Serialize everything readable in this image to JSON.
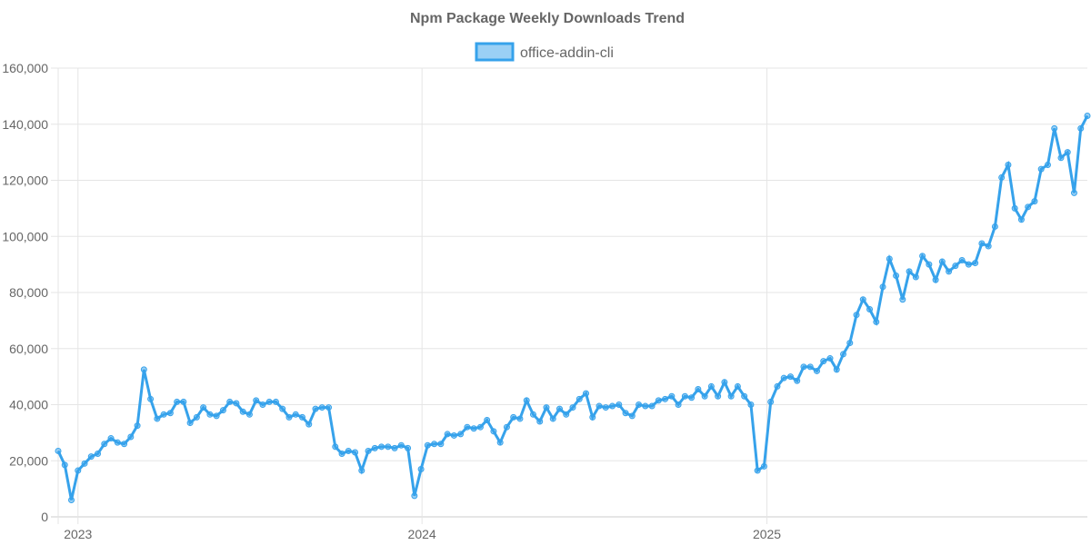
{
  "chart_data": {
    "type": "line",
    "title": "Npm Package Weekly Downloads Trend",
    "xlabel": "",
    "ylabel": "",
    "ylim": [
      0,
      160000
    ],
    "y_ticks": [
      "0",
      "20,000",
      "40,000",
      "60,000",
      "80,000",
      "100,000",
      "120,000",
      "140,000",
      "160,000"
    ],
    "x_ticks": [
      {
        "label": "2023",
        "date": "2023-01-01"
      },
      {
        "label": "2024",
        "date": "2024-01-01"
      },
      {
        "label": "2025",
        "date": "2025-01-01"
      }
    ],
    "grid": true,
    "legend_position": "top",
    "colors": {
      "line": "#36a2eb",
      "fill": "#9ad0f5"
    },
    "x": [
      "2022-12-11",
      "2022-12-18",
      "2022-12-25",
      "2023-01-01",
      "2023-01-08",
      "2023-01-15",
      "2023-01-22",
      "2023-01-29",
      "2023-02-05",
      "2023-02-12",
      "2023-02-19",
      "2023-02-26",
      "2023-03-05",
      "2023-03-12",
      "2023-03-19",
      "2023-03-26",
      "2023-04-02",
      "2023-04-09",
      "2023-04-16",
      "2023-04-23",
      "2023-04-30",
      "2023-05-07",
      "2023-05-14",
      "2023-05-21",
      "2023-05-28",
      "2023-06-04",
      "2023-06-11",
      "2023-06-18",
      "2023-06-25",
      "2023-07-02",
      "2023-07-09",
      "2023-07-16",
      "2023-07-23",
      "2023-07-30",
      "2023-08-06",
      "2023-08-13",
      "2023-08-20",
      "2023-08-27",
      "2023-09-03",
      "2023-09-10",
      "2023-09-17",
      "2023-09-24",
      "2023-10-01",
      "2023-10-08",
      "2023-10-15",
      "2023-10-22",
      "2023-10-29",
      "2023-11-05",
      "2023-11-12",
      "2023-11-19",
      "2023-11-26",
      "2023-12-03",
      "2023-12-10",
      "2023-12-17",
      "2023-12-24",
      "2023-12-31",
      "2024-01-07",
      "2024-01-14",
      "2024-01-21",
      "2024-01-28",
      "2024-02-04",
      "2024-02-11",
      "2024-02-18",
      "2024-02-25",
      "2024-03-03",
      "2024-03-10",
      "2024-03-17",
      "2024-03-24",
      "2024-03-31",
      "2024-04-07",
      "2024-04-14",
      "2024-04-21",
      "2024-04-28",
      "2024-05-05",
      "2024-05-12",
      "2024-05-19",
      "2024-05-26",
      "2024-06-02",
      "2024-06-09",
      "2024-06-16",
      "2024-06-23",
      "2024-06-30",
      "2024-07-07",
      "2024-07-14",
      "2024-07-21",
      "2024-07-28",
      "2024-08-04",
      "2024-08-11",
      "2024-08-18",
      "2024-08-25",
      "2024-09-01",
      "2024-09-08",
      "2024-09-15",
      "2024-09-22",
      "2024-09-29",
      "2024-10-06",
      "2024-10-13",
      "2024-10-20",
      "2024-10-27",
      "2024-11-03",
      "2024-11-10",
      "2024-11-17",
      "2024-11-24",
      "2024-12-01",
      "2024-12-08",
      "2024-12-15",
      "2024-12-22",
      "2024-12-29",
      "2025-01-05",
      "2025-01-12",
      "2025-01-19",
      "2025-01-26",
      "2025-02-02",
      "2025-02-09",
      "2025-02-16",
      "2025-02-23",
      "2025-03-02",
      "2025-03-09",
      "2025-03-16",
      "2025-03-23",
      "2025-03-30",
      "2025-04-06",
      "2025-04-13",
      "2025-04-20",
      "2025-04-27",
      "2025-05-04",
      "2025-05-11",
      "2025-05-18",
      "2025-05-25",
      "2025-06-01",
      "2025-06-08",
      "2025-06-15",
      "2025-06-22",
      "2025-06-29",
      "2025-07-06",
      "2025-07-13",
      "2025-07-20",
      "2025-07-27",
      "2025-08-03",
      "2025-08-10",
      "2025-08-17",
      "2025-08-24",
      "2025-08-31",
      "2025-09-07",
      "2025-09-14",
      "2025-09-21",
      "2025-09-28",
      "2025-10-05",
      "2025-10-12",
      "2025-10-19",
      "2025-10-26",
      "2025-11-02",
      "2025-11-09",
      "2025-11-16",
      "2025-11-23",
      "2025-11-30",
      "2025-12-07"
    ],
    "series": [
      {
        "name": "office-addin-cli",
        "values": [
          23500,
          18500,
          6000,
          16500,
          19000,
          21500,
          22500,
          26000,
          28000,
          26500,
          26000,
          28500,
          32500,
          52500,
          42000,
          35000,
          36500,
          37000,
          41000,
          41000,
          33500,
          35500,
          39000,
          36500,
          36000,
          38000,
          41000,
          40500,
          37500,
          36500,
          41500,
          40000,
          41000,
          41000,
          38500,
          35500,
          36500,
          35500,
          33000,
          38500,
          39000,
          39000,
          25000,
          22500,
          23500,
          23000,
          16500,
          23500,
          24500,
          25000,
          25000,
          24500,
          25500,
          24500,
          7500,
          17000,
          25500,
          26000,
          26000,
          29500,
          29000,
          29500,
          32000,
          31500,
          32000,
          34500,
          30500,
          26500,
          32000,
          35500,
          35000,
          41500,
          36500,
          34000,
          39000,
          35000,
          38500,
          36500,
          39000,
          42000,
          44000,
          35500,
          39500,
          39000,
          39500,
          40000,
          37000,
          36000,
          40000,
          39500,
          39500,
          41500,
          42000,
          43000,
          40000,
          43000,
          42500,
          45500,
          43000,
          46500,
          43000,
          48000,
          43000,
          46500,
          43000,
          40000,
          16500,
          18000,
          41000,
          46500,
          49500,
          50000,
          48500,
          53500,
          53500,
          52000,
          55500,
          56500,
          52500,
          58000,
          62000,
          72000,
          77500,
          74000,
          69500,
          82000,
          92000,
          86000,
          77500,
          87500,
          85500,
          93000,
          90000,
          84500,
          91000,
          87500,
          89500,
          91500,
          90000,
          90500,
          97500,
          96500,
          103500,
          121000,
          125500,
          110000,
          106000,
          110500,
          112500,
          124000,
          125500,
          138500,
          128000,
          130000,
          115500,
          138500,
          143000
        ]
      }
    ]
  }
}
